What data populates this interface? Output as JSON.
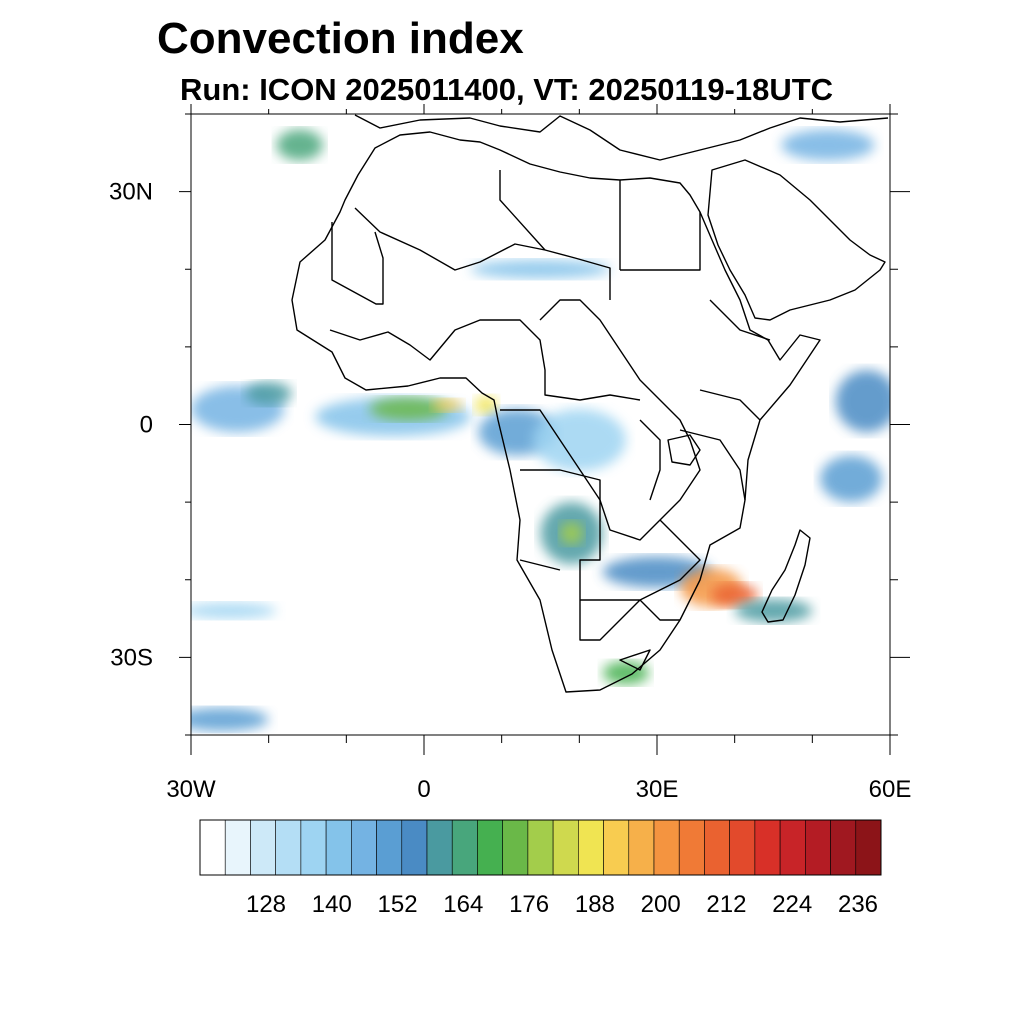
{
  "title": "Convection index",
  "subtitle": "Run: ICON 2025011400,  VT: 20250119-18UTC",
  "map": {
    "region": "Africa",
    "lon_range": [
      -30,
      60
    ],
    "lat_range": [
      -40,
      40
    ],
    "lat_ticks": [
      {
        "value": 30,
        "label": "30N"
      },
      {
        "value": 0,
        "label": "0"
      },
      {
        "value": -30,
        "label": "30S"
      }
    ],
    "lon_ticks": [
      {
        "value": -30,
        "label": "30W"
      },
      {
        "value": 0,
        "label": "0"
      },
      {
        "value": 30,
        "label": "30E"
      },
      {
        "value": 60,
        "label": "60E"
      }
    ],
    "minor_lat_ticks": [
      40,
      20,
      10,
      -10,
      -20,
      -40
    ],
    "minor_lon_ticks": [
      -20,
      -10,
      10,
      20,
      40,
      50
    ]
  },
  "colorbar": {
    "colors": [
      "#ffffff",
      "#e8f5fc",
      "#cde9f8",
      "#b4def5",
      "#9ed4f2",
      "#84c3ea",
      "#74b3e3",
      "#5a9ed3",
      "#4a8bc4",
      "#4a9aa0",
      "#48a67c",
      "#45b050",
      "#6ab848",
      "#a3cd4b",
      "#cfd94e",
      "#f0e452",
      "#f8cc50",
      "#f6b04a",
      "#f49440",
      "#f07a36",
      "#ea6230",
      "#e24a2c",
      "#d83028",
      "#c82428",
      "#b41c24",
      "#a01820",
      "#8c1418"
    ],
    "labels": [
      "128",
      "140",
      "152",
      "164",
      "176",
      "188",
      "200",
      "212",
      "224",
      "236"
    ]
  },
  "field_blobs": [
    {
      "lon": -24,
      "lat": 2,
      "rx": 6,
      "ry": 3,
      "level": 6
    },
    {
      "lon": -20,
      "lat": 4,
      "rx": 3,
      "ry": 1.5,
      "level": 9
    },
    {
      "lon": -4,
      "lat": 1,
      "rx": 10,
      "ry": 2.5,
      "level": 5
    },
    {
      "lon": -2,
      "lat": 2,
      "rx": 5,
      "ry": 1.5,
      "level": 12
    },
    {
      "lon": 3,
      "lat": 2.5,
      "rx": 2,
      "ry": 0.8,
      "level": 16
    },
    {
      "lon": 8,
      "lat": 2.5,
      "rx": 1.5,
      "ry": 1.2,
      "level": 15
    },
    {
      "lon": 12,
      "lat": -1,
      "rx": 5,
      "ry": 3,
      "level": 7
    },
    {
      "lon": 20,
      "lat": -2,
      "rx": 6,
      "ry": 4,
      "level": 4
    },
    {
      "lon": 19,
      "lat": -14,
      "rx": 4,
      "ry": 4,
      "level": 9
    },
    {
      "lon": 19,
      "lat": -14,
      "rx": 1.5,
      "ry": 1.5,
      "level": 13
    },
    {
      "lon": 30,
      "lat": -19,
      "rx": 7,
      "ry": 2,
      "level": 8
    },
    {
      "lon": 37,
      "lat": -21,
      "rx": 4,
      "ry": 2.5,
      "level": 18
    },
    {
      "lon": 40,
      "lat": -22,
      "rx": 3,
      "ry": 1.5,
      "level": 20
    },
    {
      "lon": 45,
      "lat": -24,
      "rx": 5,
      "ry": 1.5,
      "level": 9
    },
    {
      "lon": 26,
      "lat": -32,
      "rx": 3,
      "ry": 1.5,
      "level": 11
    },
    {
      "lon": 57,
      "lat": 3,
      "rx": 4,
      "ry": 4,
      "level": 8
    },
    {
      "lon": 55,
      "lat": -7,
      "rx": 4,
      "ry": 3,
      "level": 7
    },
    {
      "lon": 15,
      "lat": 20,
      "rx": 9,
      "ry": 1.2,
      "level": 5
    },
    {
      "lon": 52,
      "lat": 36,
      "rx": 6,
      "ry": 2,
      "level": 6
    },
    {
      "lon": -16,
      "lat": 36,
      "rx": 3,
      "ry": 2,
      "level": 10
    },
    {
      "lon": -25,
      "lat": -24,
      "rx": 6,
      "ry": 1,
      "level": 4
    },
    {
      "lon": -26,
      "lat": -38,
      "rx": 6,
      "ry": 1.5,
      "level": 7
    }
  ]
}
